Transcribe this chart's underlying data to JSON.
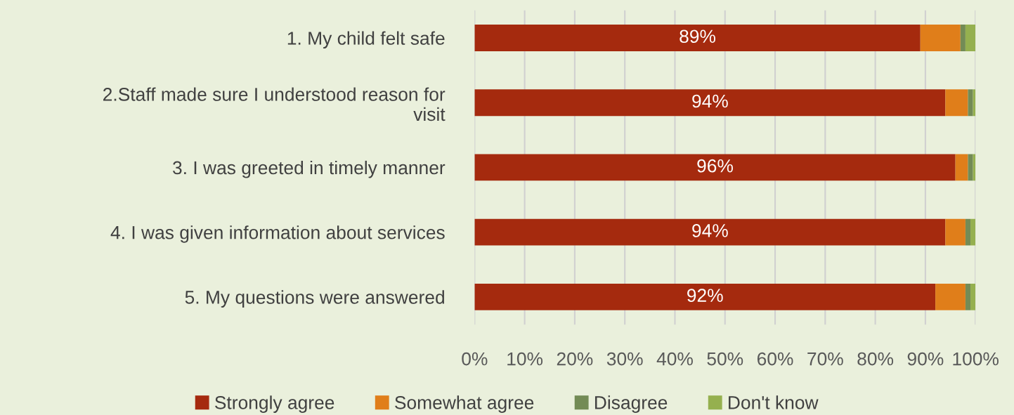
{
  "chart_data": {
    "type": "bar",
    "orientation": "horizontal",
    "stacked": true,
    "categories": [
      "1. My child felt safe",
      "2.Staff made sure I understood reason for\nvisit",
      "3. I was greeted in timely manner",
      "4. I was given information about services",
      "5. My questions were answered"
    ],
    "series": [
      {
        "name": "Strongly agree",
        "color": "#a52a0e",
        "values": [
          89,
          94,
          96,
          94,
          92
        ],
        "value_labels": [
          "89%",
          "94%",
          "96%",
          "94%",
          "92%"
        ]
      },
      {
        "name": "Somewhat agree",
        "color": "#e07e1a",
        "values": [
          8,
          4.5,
          2.5,
          4,
          6
        ]
      },
      {
        "name": "Disagree",
        "color": "#738b55",
        "values": [
          1,
          1,
          1,
          1,
          1
        ]
      },
      {
        "name": "Don't know",
        "color": "#95b04f",
        "values": [
          2,
          0.5,
          0.5,
          1,
          1
        ]
      }
    ],
    "xlim": [
      0,
      100
    ],
    "xticks": [
      {
        "value": 0,
        "label": "0%"
      },
      {
        "value": 10,
        "label": "10%"
      },
      {
        "value": 20,
        "label": "20%"
      },
      {
        "value": 30,
        "label": "30%"
      },
      {
        "value": 40,
        "label": "40%"
      },
      {
        "value": 50,
        "label": "50%"
      },
      {
        "value": 60,
        "label": "60%"
      },
      {
        "value": 70,
        "label": "70%"
      },
      {
        "value": 80,
        "label": "80%"
      },
      {
        "value": 90,
        "label": "90%"
      },
      {
        "value": 100,
        "label": "100%"
      }
    ],
    "grid": "x",
    "legend": "bottom"
  }
}
